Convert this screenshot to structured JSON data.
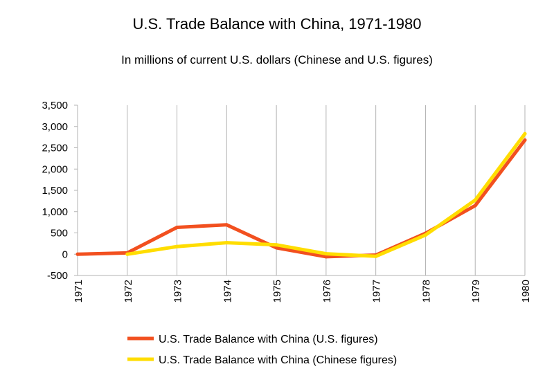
{
  "chart_data": {
    "type": "line",
    "title": "U.S. Trade Balance with China, 1971-1980",
    "subtitle": "In millions of current U.S. dollars (Chinese and U.S. figures)",
    "xlabel": "",
    "ylabel": "",
    "categories": [
      "1971",
      "1972",
      "1973",
      "1974",
      "1975",
      "1976",
      "1977",
      "1978",
      "1979",
      "1980"
    ],
    "y_ticks": [
      "-500",
      "0",
      "500",
      "1,000",
      "1,500",
      "2,000",
      "2,500",
      "3,000",
      "3,500"
    ],
    "ylim": [
      -500,
      3500
    ],
    "grid": "vertical",
    "legend_position": "bottom",
    "series": [
      {
        "name": "U.S. Trade Balance with China (U.S. figures)",
        "color": "#f2501f",
        "values": [
          0,
          30,
          630,
          690,
          150,
          -60,
          -20,
          490,
          1140,
          2680
        ]
      },
      {
        "name": "U.S. Trade Balance with China (Chinese figures)",
        "color": "#ffdd00",
        "values": [
          null,
          0,
          180,
          270,
          220,
          10,
          -50,
          450,
          1270,
          2830
        ]
      }
    ]
  }
}
